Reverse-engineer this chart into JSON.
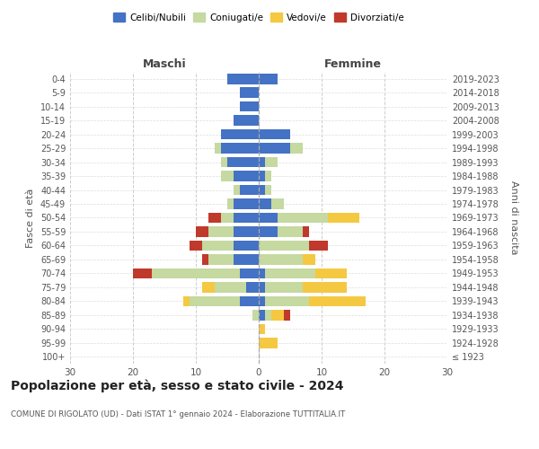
{
  "age_groups": [
    "100+",
    "95-99",
    "90-94",
    "85-89",
    "80-84",
    "75-79",
    "70-74",
    "65-69",
    "60-64",
    "55-59",
    "50-54",
    "45-49",
    "40-44",
    "35-39",
    "30-34",
    "25-29",
    "20-24",
    "15-19",
    "10-14",
    "5-9",
    "0-4"
  ],
  "birth_years": [
    "≤ 1923",
    "1924-1928",
    "1929-1933",
    "1934-1938",
    "1939-1943",
    "1944-1948",
    "1949-1953",
    "1954-1958",
    "1959-1963",
    "1964-1968",
    "1969-1973",
    "1974-1978",
    "1979-1983",
    "1984-1988",
    "1989-1993",
    "1994-1998",
    "1999-2003",
    "2004-2008",
    "2009-2013",
    "2014-2018",
    "2019-2023"
  ],
  "colors": {
    "celibe": "#4472C4",
    "coniugato": "#c5d9a0",
    "vedovo": "#f5c842",
    "divorziato": "#c0392b"
  },
  "maschi": {
    "celibe": [
      0,
      0,
      0,
      0,
      3,
      2,
      3,
      4,
      4,
      4,
      4,
      4,
      3,
      4,
      5,
      6,
      6,
      4,
      3,
      3,
      5
    ],
    "coniugato": [
      0,
      0,
      0,
      1,
      8,
      5,
      14,
      4,
      5,
      4,
      2,
      1,
      1,
      2,
      1,
      1,
      0,
      0,
      0,
      0,
      0
    ],
    "vedovo": [
      0,
      0,
      0,
      0,
      1,
      2,
      0,
      0,
      0,
      0,
      0,
      0,
      0,
      0,
      0,
      0,
      0,
      0,
      0,
      0,
      0
    ],
    "divorziato": [
      0,
      0,
      0,
      0,
      0,
      0,
      3,
      1,
      2,
      2,
      2,
      0,
      0,
      0,
      0,
      0,
      0,
      0,
      0,
      0,
      0
    ]
  },
  "femmine": {
    "nubile": [
      0,
      0,
      0,
      1,
      1,
      1,
      1,
      0,
      0,
      3,
      3,
      2,
      1,
      1,
      1,
      5,
      5,
      0,
      0,
      0,
      3
    ],
    "coniugata": [
      0,
      0,
      0,
      1,
      7,
      6,
      8,
      7,
      8,
      4,
      8,
      2,
      1,
      1,
      2,
      2,
      0,
      0,
      0,
      0,
      0
    ],
    "vedova": [
      0,
      3,
      1,
      2,
      9,
      7,
      5,
      2,
      0,
      0,
      5,
      0,
      0,
      0,
      0,
      0,
      0,
      0,
      0,
      0,
      0
    ],
    "divorziata": [
      0,
      0,
      0,
      1,
      0,
      0,
      0,
      0,
      3,
      1,
      0,
      0,
      0,
      0,
      0,
      0,
      0,
      0,
      0,
      0,
      0
    ]
  },
  "xlim": 30,
  "title": "Popolazione per età, sesso e stato civile - 2024",
  "subtitle": "COMUNE DI RIGOLATO (UD) - Dati ISTAT 1° gennaio 2024 - Elaborazione TUTTITALIA.IT",
  "ylabel_left": "Fasce di età",
  "ylabel_right": "Anni di nascita",
  "xlabel_left": "Maschi",
  "xlabel_right": "Femmine",
  "legend_labels": [
    "Celibi/Nubili",
    "Coniugati/e",
    "Vedovi/e",
    "Divorziati/e"
  ],
  "legend_colors": [
    "#4472C4",
    "#c5d9a0",
    "#f5c842",
    "#c0392b"
  ],
  "bg_color": "#ffffff"
}
